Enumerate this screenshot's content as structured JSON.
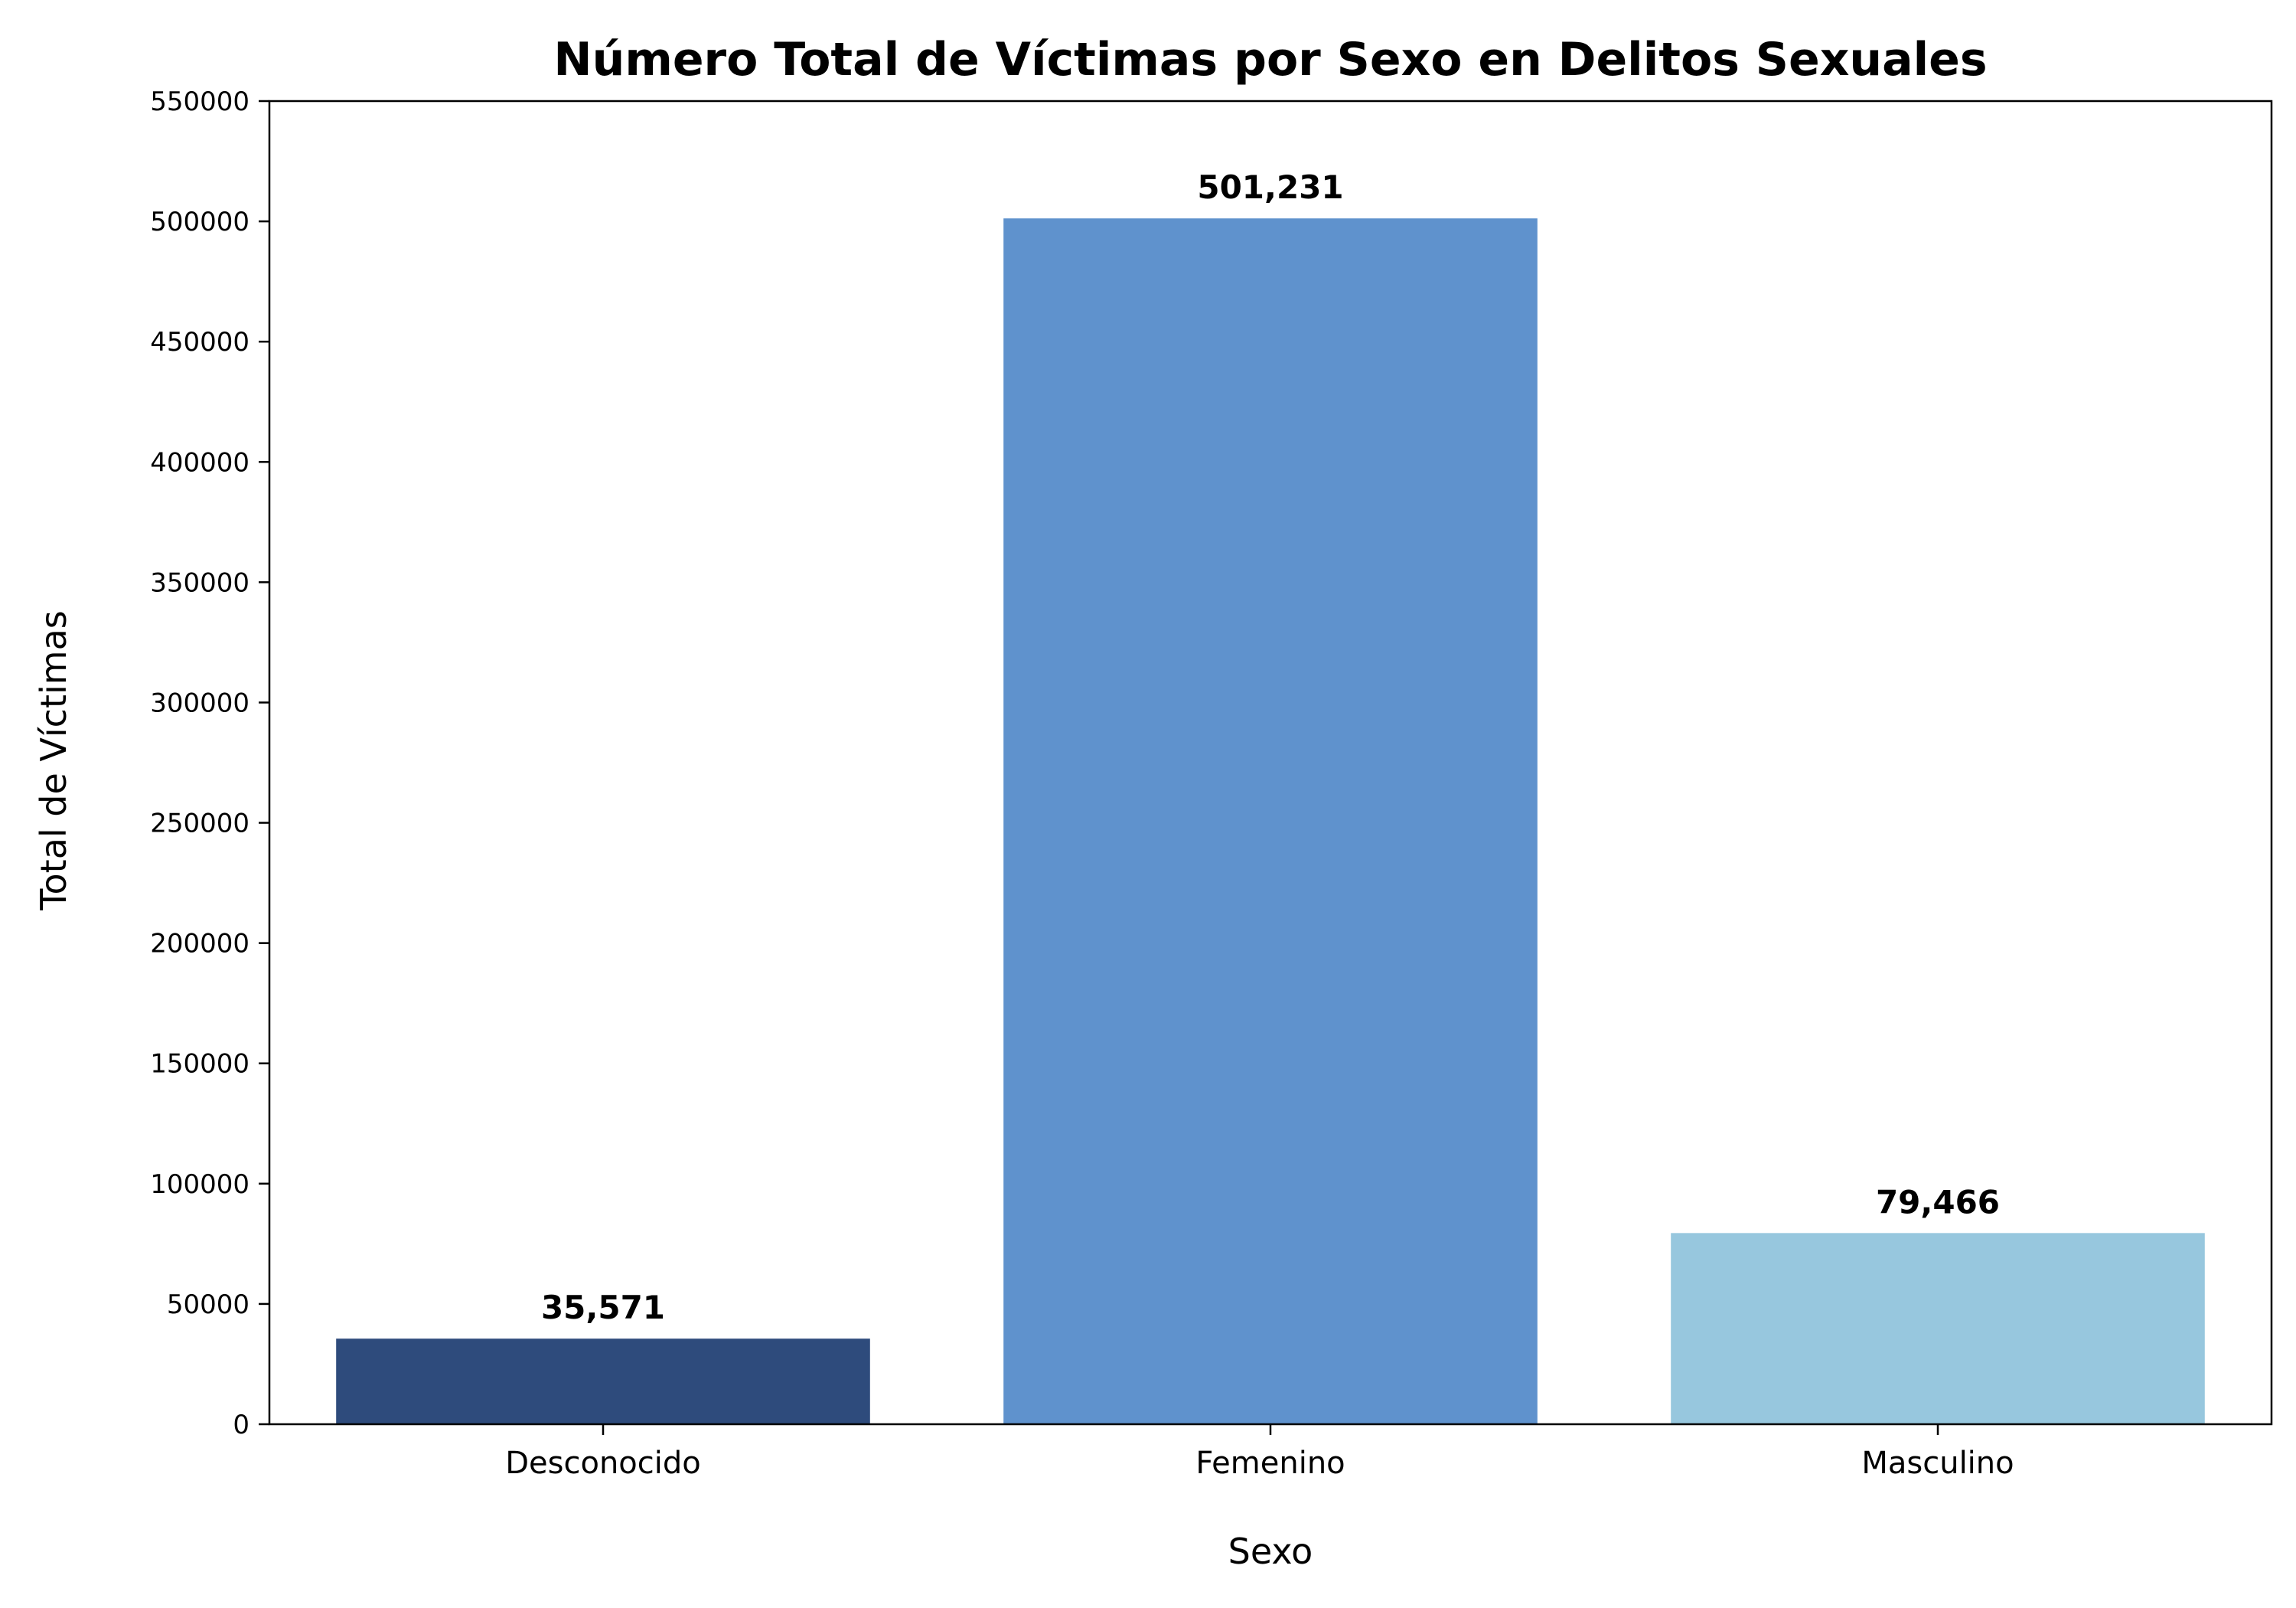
{
  "chart_data": {
    "type": "bar",
    "title": "Número Total de Víctimas por Sexo en Delitos Sexuales",
    "xlabel": "Sexo",
    "ylabel": "Total de Víctimas",
    "categories": [
      "Desconocido",
      "Femenino",
      "Masculino"
    ],
    "values": [
      35571,
      501231,
      79466
    ],
    "data_labels": [
      "35,571",
      "501,231",
      "79,466"
    ],
    "colors": [
      "#2e4b7c",
      "#5f92cd",
      "#97c7de"
    ],
    "ylim": [
      0,
      550000
    ],
    "yticks": [
      0,
      50000,
      100000,
      150000,
      200000,
      250000,
      300000,
      350000,
      400000,
      450000,
      500000,
      550000
    ],
    "ytick_labels": [
      "0",
      "50000",
      "100000",
      "150000",
      "200000",
      "250000",
      "300000",
      "350000",
      "400000",
      "450000",
      "500000",
      "550000"
    ],
    "grid": false,
    "legend": "none"
  }
}
